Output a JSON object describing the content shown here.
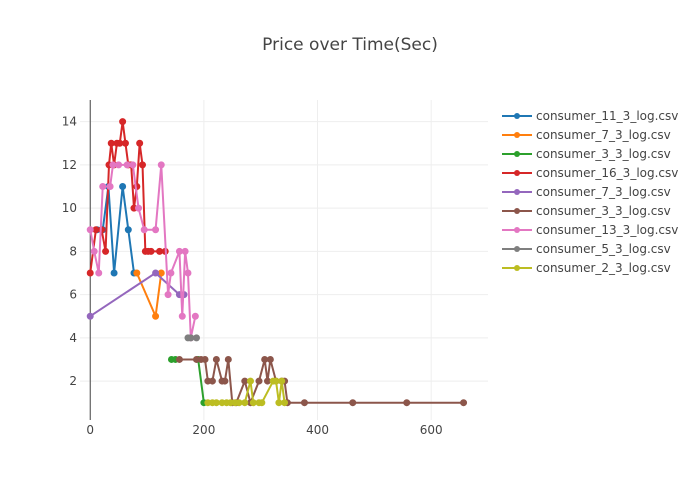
{
  "chart_data": {
    "type": "line",
    "title": "Price over Time(Sec)",
    "xlabel": "",
    "ylabel": "",
    "xlim": [
      -18,
      700
    ],
    "ylim": [
      0.2,
      15.0
    ],
    "x_ticks": [
      0,
      200,
      400,
      600
    ],
    "y_ticks": [
      2,
      4,
      6,
      8,
      10,
      12,
      14
    ],
    "grid": true,
    "legend_position": "right",
    "series": [
      {
        "name": "consumer_11_3_log.csv",
        "color": "#1f77b4",
        "x": [
          12,
          22,
          32,
          42,
          57,
          67,
          77
        ],
        "y": [
          9,
          9,
          11,
          7,
          11,
          9,
          7
        ]
      },
      {
        "name": "consumer_7_3_log.csv",
        "color": "#ff7f0e",
        "x": [
          82,
          115,
          125
        ],
        "y": [
          7,
          5,
          7
        ]
      },
      {
        "name": "consumer_3_3_log.csv",
        "color": "#2ca02c",
        "x": [
          143,
          150,
          190,
          200
        ],
        "y": [
          3,
          3,
          3,
          1
        ]
      },
      {
        "name": "consumer_16_3_log.csv",
        "color": "#d62728",
        "x": [
          0,
          10,
          20,
          27,
          33,
          37,
          42,
          47,
          52,
          57,
          62,
          67,
          72,
          77,
          82,
          87,
          92,
          97,
          102,
          107,
          122,
          132
        ],
        "y": [
          7,
          9,
          9,
          8,
          12,
          13,
          12,
          13,
          13,
          14,
          13,
          12,
          12,
          10,
          11,
          13,
          12,
          8,
          8,
          8,
          8,
          8
        ]
      },
      {
        "name": "consumer_7_3_log.csv",
        "color": "#9467bd",
        "x": [
          0,
          115,
          157,
          165
        ],
        "y": [
          5,
          7,
          6,
          6
        ]
      },
      {
        "name": "consumer_3_3_log.csv",
        "color": "#8c564b",
        "x": [
          157,
          187,
          195,
          202,
          207,
          215,
          222,
          232,
          237,
          243,
          250,
          257,
          272,
          282,
          297,
          307,
          312,
          317,
          327,
          337,
          342,
          347,
          377,
          462,
          557,
          657
        ],
        "y": [
          3,
          3,
          3,
          3,
          2,
          2,
          3,
          2,
          2,
          3,
          1,
          1,
          2,
          1,
          2,
          3,
          2,
          3,
          2,
          2,
          2,
          1,
          1,
          1,
          1,
          1
        ]
      },
      {
        "name": "consumer_13_3_log.csv",
        "color": "#e377c2",
        "x": [
          0,
          7,
          15,
          22,
          35,
          40,
          50,
          65,
          75,
          85,
          95,
          115,
          125,
          137,
          142,
          157,
          162,
          167,
          172,
          177,
          185
        ],
        "y": [
          9,
          8,
          7,
          11,
          11,
          12,
          12,
          12,
          12,
          10,
          9,
          9,
          12,
          6,
          7,
          8,
          5,
          8,
          7,
          4,
          5
        ]
      },
      {
        "name": "consumer_5_3_log.csv",
        "color": "#7f7f7f",
        "x": [
          172,
          177,
          187
        ],
        "y": [
          4,
          4,
          4
        ]
      },
      {
        "name": "consumer_2_3_log.csv",
        "color": "#bcbd22",
        "x": [
          207,
          215,
          222,
          232,
          240,
          247,
          255,
          262,
          272,
          282,
          287,
          297,
          302,
          322,
          327,
          332,
          337,
          342
        ],
        "y": [
          1,
          1,
          1,
          1,
          1,
          1,
          1,
          1,
          1,
          2,
          1,
          1,
          1,
          2,
          2,
          1,
          2,
          1
        ]
      }
    ]
  }
}
